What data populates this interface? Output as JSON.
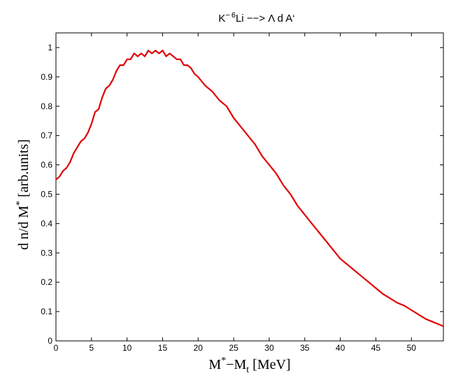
{
  "chart_data": {
    "type": "line",
    "title": {
      "pre": "K",
      "pre_sup": "−",
      "mid_sup": "6",
      "main": "Li −−> Λ d A‘"
    },
    "xlabel": {
      "a": "M",
      "a_sup": "*",
      "b": "−M",
      "b_sub": "t",
      "c": " [MeV]"
    },
    "ylabel": {
      "a": "d n/d M",
      "a_sup": "*",
      "b": " [arb.units]"
    },
    "xlim": [
      0,
      54.5
    ],
    "ylim": [
      0,
      1.05
    ],
    "xticks": [
      0,
      5,
      10,
      15,
      20,
      25,
      30,
      35,
      40,
      45,
      50
    ],
    "yticks": [
      0,
      0.1,
      0.2,
      0.3,
      0.4,
      0.5,
      0.6,
      0.7,
      0.8,
      0.9,
      1
    ],
    "grid": false,
    "series": [
      {
        "color": "#e00000",
        "x": [
          0,
          0.5,
          1,
          1.5,
          2,
          2.5,
          3,
          3.5,
          4,
          4.5,
          5,
          5.5,
          6,
          6.5,
          7,
          7.5,
          8,
          8.5,
          9,
          9.5,
          10,
          10.5,
          11,
          11.5,
          12,
          12.5,
          13,
          13.5,
          14,
          14.5,
          15,
          15.5,
          16,
          16.5,
          17,
          17.5,
          18,
          18.5,
          19,
          19.5,
          20,
          21,
          22,
          23,
          24,
          25,
          26,
          27,
          28,
          29,
          30,
          31,
          32,
          33,
          34,
          35,
          36,
          37,
          38,
          39,
          40,
          41,
          42,
          43,
          44,
          45,
          46,
          47,
          48,
          49,
          50,
          51,
          52,
          53,
          54,
          54.5
        ],
        "y": [
          0.55,
          0.56,
          0.58,
          0.59,
          0.61,
          0.64,
          0.66,
          0.68,
          0.69,
          0.71,
          0.74,
          0.78,
          0.79,
          0.83,
          0.86,
          0.87,
          0.89,
          0.92,
          0.94,
          0.94,
          0.96,
          0.96,
          0.98,
          0.97,
          0.98,
          0.97,
          0.99,
          0.98,
          0.99,
          0.98,
          0.99,
          0.97,
          0.98,
          0.97,
          0.96,
          0.96,
          0.94,
          0.94,
          0.93,
          0.91,
          0.9,
          0.87,
          0.85,
          0.82,
          0.8,
          0.76,
          0.73,
          0.7,
          0.67,
          0.63,
          0.6,
          0.57,
          0.53,
          0.5,
          0.46,
          0.43,
          0.4,
          0.37,
          0.34,
          0.31,
          0.28,
          0.26,
          0.24,
          0.22,
          0.2,
          0.18,
          0.16,
          0.145,
          0.13,
          0.12,
          0.105,
          0.09,
          0.075,
          0.065,
          0.055,
          0.05
        ]
      }
    ]
  }
}
